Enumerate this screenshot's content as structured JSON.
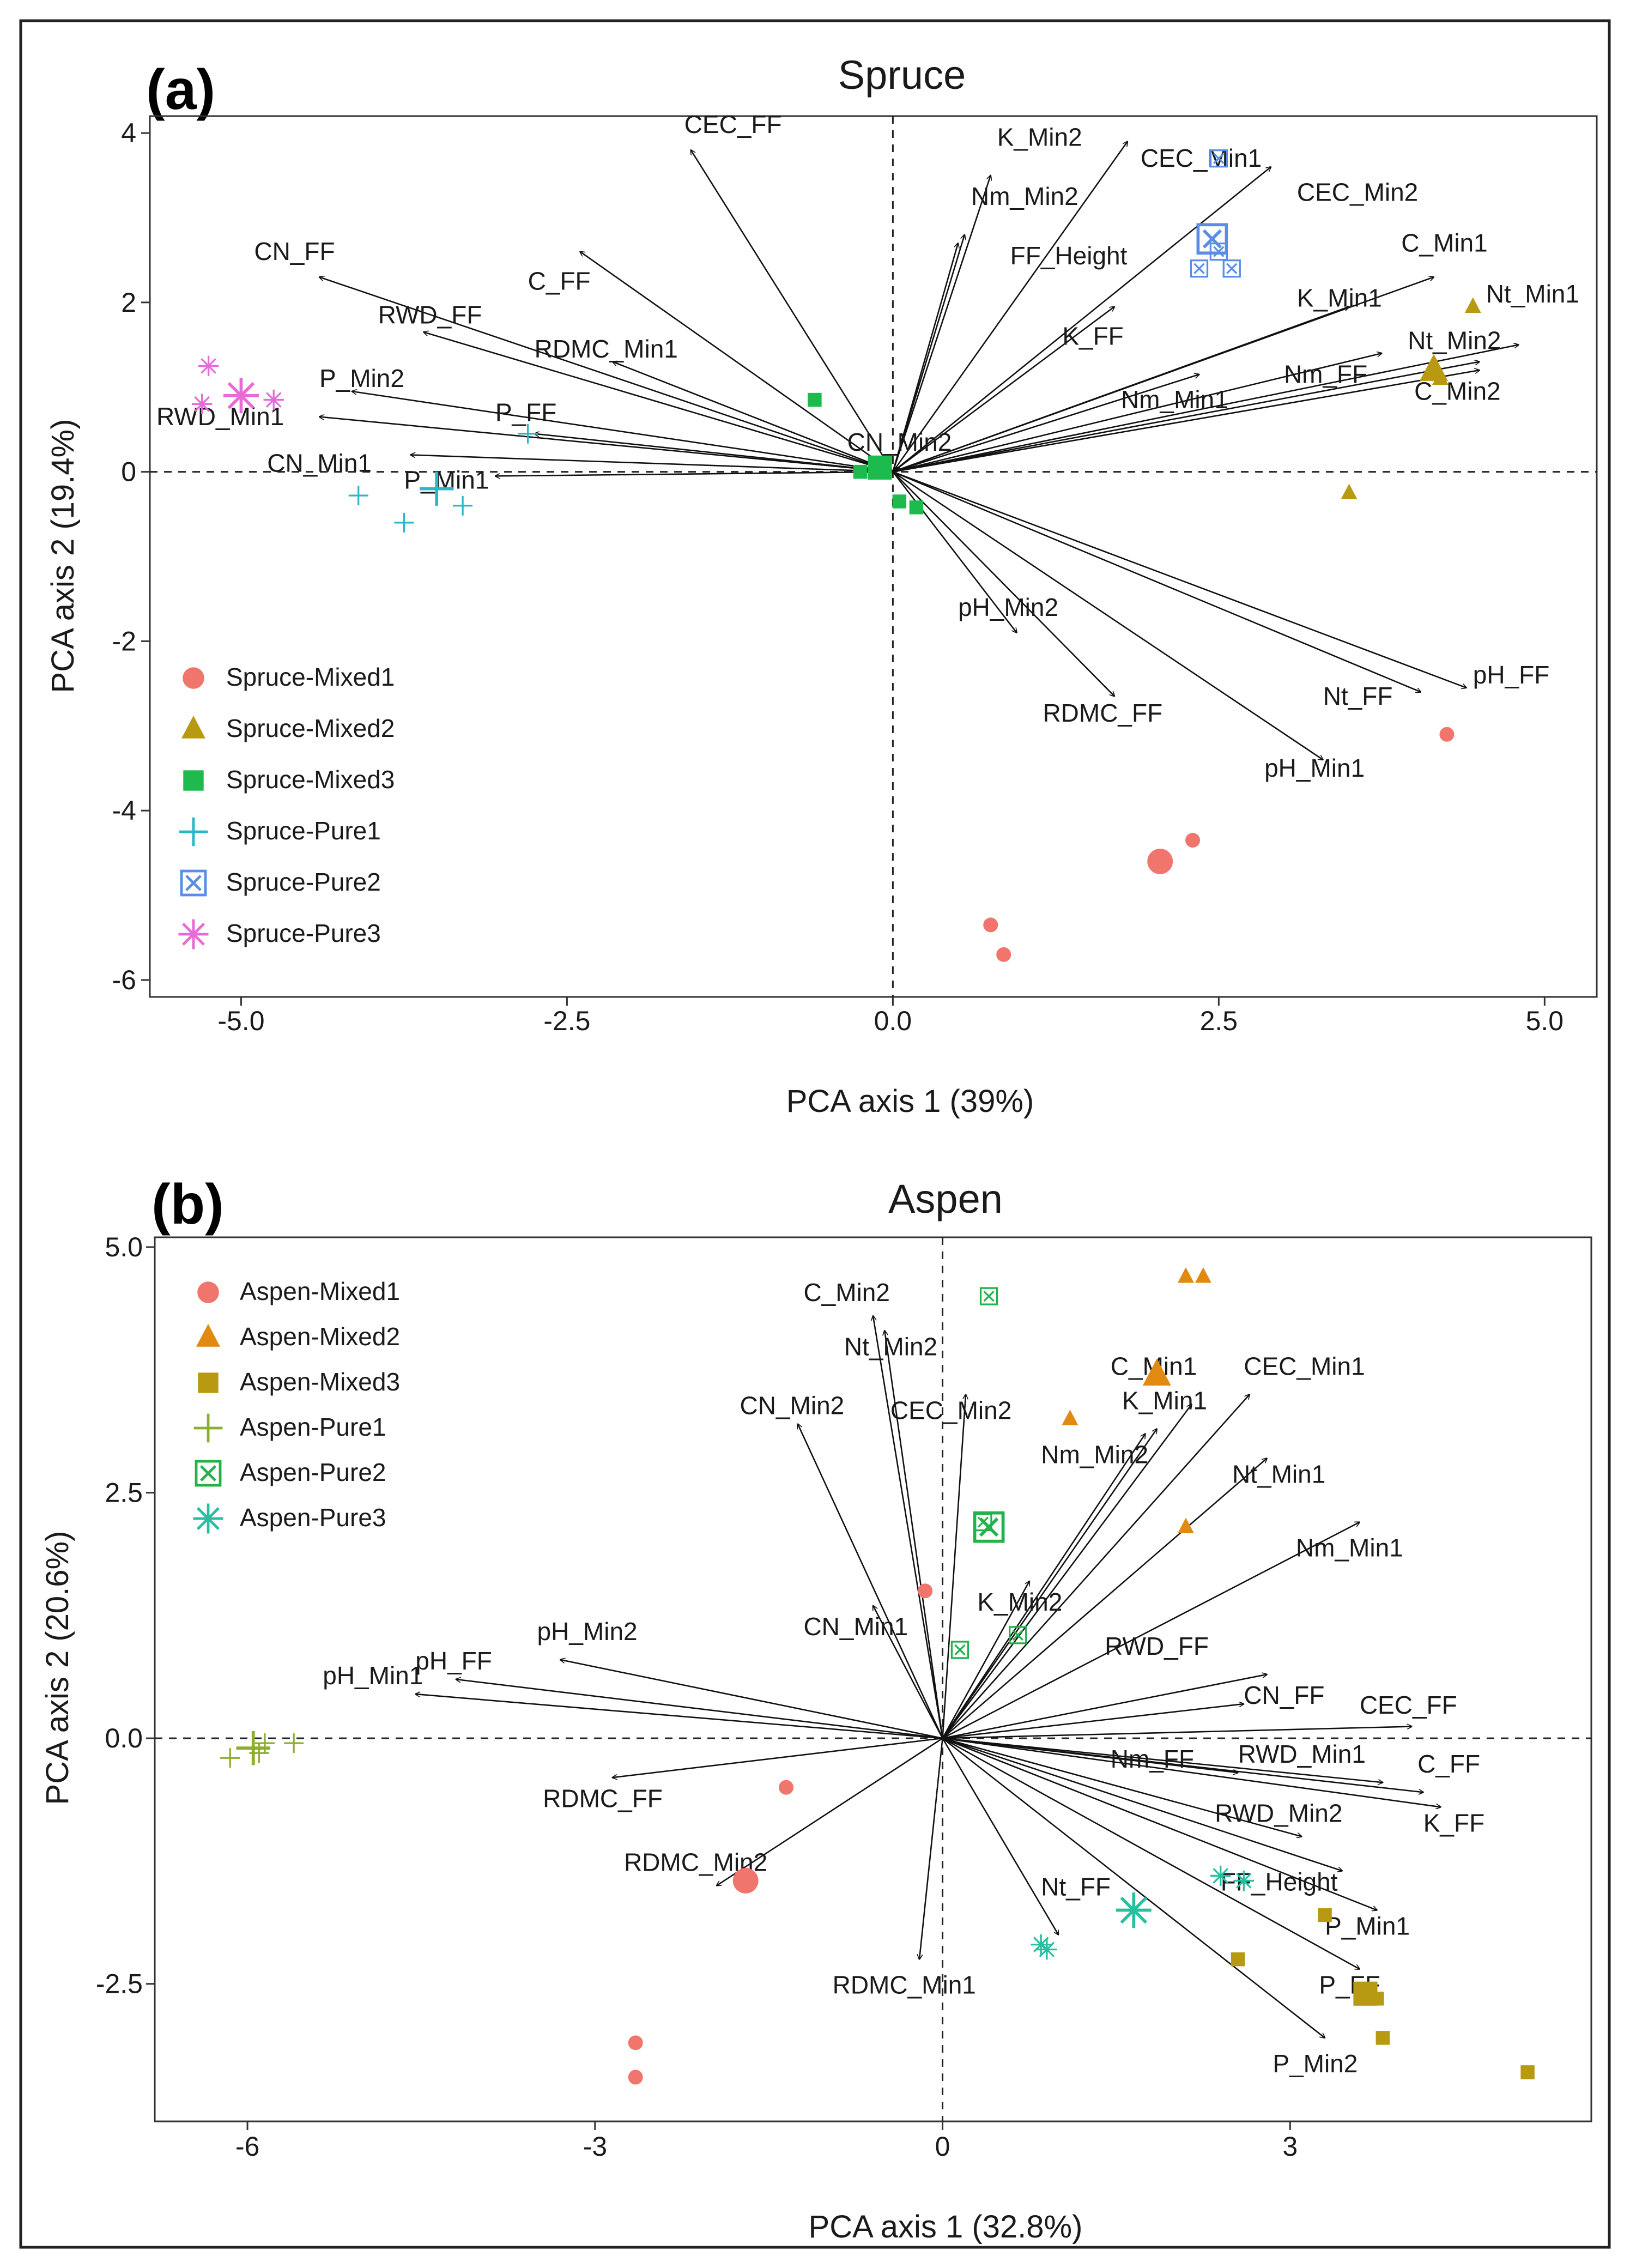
{
  "chart_data": [
    {
      "type": "scatter",
      "panel": "(a)",
      "title": "Spruce",
      "xlabel": "PCA axis 1 (39%)",
      "ylabel": "PCA axis 2 (19.4%)",
      "xlim": [
        -5.7,
        5.4
      ],
      "ylim": [
        -6.2,
        4.2
      ],
      "xticks": [
        -5.0,
        -2.5,
        0.0,
        2.5,
        5.0
      ],
      "xtick_labels": [
        "-5.0",
        "-2.5",
        "0.0",
        "2.5",
        "5.0"
      ],
      "yticks": [
        -6,
        -4,
        -2,
        0,
        2,
        4
      ],
      "ytick_labels": [
        "-6",
        "-4",
        "-2",
        "0",
        "2",
        "4"
      ],
      "legend_position": "bottom-left",
      "vectors": [
        {
          "label": "CEC_FF",
          "x": -1.55,
          "y": 3.8
        },
        {
          "label": "K_Min2",
          "x": 0.75,
          "y": 3.5
        },
        {
          "label": "CEC_Min1",
          "x": 1.8,
          "y": 3.9
        },
        {
          "label": "Nm_Min2",
          "x": 0.55,
          "y": 2.8
        },
        {
          "label": "FF_Height",
          "x": 0.5,
          "y": 2.7
        },
        {
          "label": "CEC_Min2",
          "x": 2.9,
          "y": 3.6
        },
        {
          "label": "C_Min1",
          "x": 4.15,
          "y": 2.3
        },
        {
          "label": "Nt_Min1",
          "x": 4.8,
          "y": 1.5
        },
        {
          "label": "K_Min1",
          "x": 3.5,
          "y": 1.95
        },
        {
          "label": "Nt_Min2",
          "x": 4.5,
          "y": 1.3
        },
        {
          "label": "Nm_FF",
          "x": 3.75,
          "y": 1.4
        },
        {
          "label": "C_Min2",
          "x": 4.5,
          "y": 1.2
        },
        {
          "label": "Nm_Min1",
          "x": 2.35,
          "y": 1.15
        },
        {
          "label": "K_FF",
          "x": 1.7,
          "y": 1.95
        },
        {
          "label": "CN_FF",
          "x": -4.4,
          "y": 2.3
        },
        {
          "label": "C_FF",
          "x": -2.4,
          "y": 2.6
        },
        {
          "label": "RWD_FF",
          "x": -3.6,
          "y": 1.65
        },
        {
          "label": "RDMC_Min1",
          "x": -2.15,
          "y": 1.3
        },
        {
          "label": "P_Min2",
          "x": -4.15,
          "y": 0.95
        },
        {
          "label": "RWD_Min1",
          "x": -4.4,
          "y": 0.65
        },
        {
          "label": "P_FF",
          "x": -2.75,
          "y": 0.45
        },
        {
          "label": "CN_Min1",
          "x": -3.7,
          "y": 0.2
        },
        {
          "label": "P_Min1",
          "x": -3.05,
          "y": -0.05
        },
        {
          "label": "CN_Min2",
          "x": 0.05,
          "y": 0.05
        },
        {
          "label": "pH_Min2",
          "x": 0.95,
          "y": -1.9
        },
        {
          "label": "RDMC_FF",
          "x": 1.7,
          "y": -2.65
        },
        {
          "label": "Nt_FF",
          "x": 4.05,
          "y": -2.6
        },
        {
          "label": "pH_FF",
          "x": 4.4,
          "y": -2.55
        },
        {
          "label": "pH_Min1",
          "x": 3.3,
          "y": -3.4
        }
      ],
      "vector_label_positions": [
        {
          "label": "CEC_FF",
          "x": -1.6,
          "y": 4.0
        },
        {
          "label": "K_Min2",
          "x": 0.8,
          "y": 3.85
        },
        {
          "label": "CEC_Min1",
          "x": 1.9,
          "y": 3.6
        },
        {
          "label": "Nm_Min2",
          "x": 0.6,
          "y": 3.15
        },
        {
          "label": "FF_Height",
          "x": 0.9,
          "y": 2.45
        },
        {
          "label": "CEC_Min2",
          "x": 3.1,
          "y": 3.2
        },
        {
          "label": "C_Min1",
          "x": 3.9,
          "y": 2.6
        },
        {
          "label": "Nt_Min1",
          "x": 4.55,
          "y": 2.0
        },
        {
          "label": "K_Min1",
          "x": 3.1,
          "y": 1.95
        },
        {
          "label": "Nt_Min2",
          "x": 3.95,
          "y": 1.45
        },
        {
          "label": "Nm_FF",
          "x": 3.0,
          "y": 1.05
        },
        {
          "label": "C_Min2",
          "x": 4.0,
          "y": 0.85
        },
        {
          "label": "Nm_Min1",
          "x": 1.75,
          "y": 0.75
        },
        {
          "label": "K_FF",
          "x": 1.3,
          "y": 1.5
        },
        {
          "label": "CN_FF",
          "x": -4.9,
          "y": 2.5
        },
        {
          "label": "C_FF",
          "x": -2.8,
          "y": 2.15
        },
        {
          "label": "RWD_FF",
          "x": -3.95,
          "y": 1.75
        },
        {
          "label": "RDMC_Min1",
          "x": -2.75,
          "y": 1.35
        },
        {
          "label": "P_Min2",
          "x": -4.4,
          "y": 1.0
        },
        {
          "label": "RWD_Min1",
          "x": -5.65,
          "y": 0.55
        },
        {
          "label": "P_FF",
          "x": -3.05,
          "y": 0.6
        },
        {
          "label": "CN_Min1",
          "x": -4.8,
          "y": 0.0
        },
        {
          "label": "P_Min1",
          "x": -3.75,
          "y": -0.2
        },
        {
          "label": "CN_Min2",
          "x": -0.35,
          "y": 0.25
        },
        {
          "label": "pH_Min2",
          "x": 0.5,
          "y": -1.7
        },
        {
          "label": "RDMC_FF",
          "x": 1.15,
          "y": -2.95
        },
        {
          "label": "Nt_FF",
          "x": 3.3,
          "y": -2.75
        },
        {
          "label": "pH_FF",
          "x": 4.45,
          "y": -2.5
        },
        {
          "label": "pH_Min1",
          "x": 2.85,
          "y": -3.6
        }
      ],
      "series": [
        {
          "name": "Spruce-Mixed1",
          "marker": "circle",
          "color": "#F0756C",
          "points": [
            {
              "x": 4.25,
              "y": -3.1
            },
            {
              "x": 2.3,
              "y": -4.35
            },
            {
              "x": 2.05,
              "y": -4.6,
              "size": "large"
            },
            {
              "x": 0.75,
              "y": -5.35
            },
            {
              "x": 0.85,
              "y": -5.7
            }
          ]
        },
        {
          "name": "Spruce-Mixed2",
          "marker": "triangle",
          "color": "#B89A12",
          "points": [
            {
              "x": 4.45,
              "y": 1.95
            },
            {
              "x": 4.15,
              "y": 1.2,
              "size": "large"
            },
            {
              "x": 4.2,
              "y": 1.1
            },
            {
              "x": 3.5,
              "y": -0.25
            }
          ]
        },
        {
          "name": "Spruce-Mixed3",
          "marker": "square",
          "color": "#1DBA4E",
          "points": [
            {
              "x": -0.6,
              "y": 0.85
            },
            {
              "x": -0.1,
              "y": 0.05,
              "size": "large"
            },
            {
              "x": -0.25,
              "y": 0.0
            },
            {
              "x": 0.05,
              "y": -0.35
            },
            {
              "x": 0.18,
              "y": -0.42
            }
          ]
        },
        {
          "name": "Spruce-Pure1",
          "marker": "plus",
          "color": "#2AB7C8",
          "points": [
            {
              "x": -2.8,
              "y": 0.45
            },
            {
              "x": -3.5,
              "y": -0.2,
              "size": "large"
            },
            {
              "x": -4.1,
              "y": -0.28
            },
            {
              "x": -3.75,
              "y": -0.6
            },
            {
              "x": -3.3,
              "y": -0.4
            }
          ]
        },
        {
          "name": "Spruce-Pure2",
          "marker": "boxx",
          "color": "#5A8EE6",
          "points": [
            {
              "x": 2.5,
              "y": 3.7
            },
            {
              "x": 2.45,
              "y": 2.75,
              "size": "large"
            },
            {
              "x": 2.5,
              "y": 2.6
            },
            {
              "x": 2.35,
              "y": 2.4
            },
            {
              "x": 2.6,
              "y": 2.4
            }
          ]
        },
        {
          "name": "Spruce-Pure3",
          "marker": "asterisk",
          "color": "#E86AD8",
          "points": [
            {
              "x": -5.25,
              "y": 1.25
            },
            {
              "x": -5.0,
              "y": 0.9,
              "size": "large"
            },
            {
              "x": -4.75,
              "y": 0.85
            },
            {
              "x": -5.3,
              "y": 0.8
            }
          ]
        }
      ]
    },
    {
      "type": "scatter",
      "panel": "(b)",
      "title": "Aspen",
      "xlabel": "PCA axis 1 (32.8%)",
      "ylabel": "PCA axis 2 (20.6%)",
      "xlim": [
        -6.8,
        5.6
      ],
      "ylim": [
        -3.9,
        5.1
      ],
      "xticks": [
        -6,
        -3,
        0,
        3
      ],
      "xtick_labels": [
        "-6",
        "-3",
        "0",
        "3"
      ],
      "yticks": [
        -2.5,
        0.0,
        2.5,
        5.0
      ],
      "ytick_labels": [
        "-2.5",
        "0.0",
        "2.5",
        "5.0"
      ],
      "legend_position": "top-left",
      "vectors": [
        {
          "label": "C_Min2",
          "x": -0.6,
          "y": 4.3
        },
        {
          "label": "Nt_Min2",
          "x": -0.5,
          "y": 4.15
        },
        {
          "label": "CN_Min2",
          "x": -1.25,
          "y": 3.2
        },
        {
          "label": "CEC_Min2",
          "x": 0.2,
          "y": 3.5
        },
        {
          "label": "C_Min1",
          "x": 2.15,
          "y": 3.4
        },
        {
          "label": "CEC_Min1",
          "x": 2.65,
          "y": 3.5
        },
        {
          "label": "K_Min1",
          "x": 1.85,
          "y": 3.15
        },
        {
          "label": "Nm_Min2",
          "x": 1.75,
          "y": 3.1
        },
        {
          "label": "Nt_Min1",
          "x": 2.8,
          "y": 2.85
        },
        {
          "label": "Nm_Min1",
          "x": 3.6,
          "y": 2.2
        },
        {
          "label": "K_Min2",
          "x": 0.75,
          "y": 1.6
        },
        {
          "label": "CN_Min1",
          "x": -0.6,
          "y": 1.35
        },
        {
          "label": "RWD_FF",
          "x": 2.8,
          "y": 0.65
        },
        {
          "label": "CN_FF",
          "x": 2.6,
          "y": 0.35
        },
        {
          "label": "CEC_FF",
          "x": 4.05,
          "y": 0.12
        },
        {
          "label": "Nm_FF",
          "x": 2.55,
          "y": -0.35
        },
        {
          "label": "RWD_Min1",
          "x": 3.8,
          "y": -0.45
        },
        {
          "label": "C_FF",
          "x": 4.15,
          "y": -0.55
        },
        {
          "label": "K_FF",
          "x": 4.3,
          "y": -0.7
        },
        {
          "label": "RWD_Min2",
          "x": 3.1,
          "y": -1.0
        },
        {
          "label": "FF_Height",
          "x": 3.45,
          "y": -1.35
        },
        {
          "label": "P_Min1",
          "x": 3.75,
          "y": -1.75
        },
        {
          "label": "P_FF",
          "x": 3.6,
          "y": -2.35
        },
        {
          "label": "P_Min2",
          "x": 3.3,
          "y": -3.05
        },
        {
          "label": "Nt_FF",
          "x": 1.0,
          "y": -2.0
        },
        {
          "label": "RDMC_Min1",
          "x": -0.2,
          "y": -2.25
        },
        {
          "label": "RDMC_Min2",
          "x": -1.95,
          "y": -1.5
        },
        {
          "label": "RDMC_FF",
          "x": -2.85,
          "y": -0.4
        },
        {
          "label": "pH_Min2",
          "x": -3.3,
          "y": 0.8
        },
        {
          "label": "pH_FF",
          "x": -4.2,
          "y": 0.6
        },
        {
          "label": "pH_Min1",
          "x": -4.55,
          "y": 0.45
        }
      ],
      "vector_label_positions": [
        {
          "label": "C_Min2",
          "x": -1.2,
          "y": 4.45
        },
        {
          "label": "Nt_Min2",
          "x": -0.85,
          "y": 3.9
        },
        {
          "label": "CN_Min2",
          "x": -1.75,
          "y": 3.3
        },
        {
          "label": "CEC_Min2",
          "x": -0.45,
          "y": 3.25
        },
        {
          "label": "C_Min1",
          "x": 1.45,
          "y": 3.7
        },
        {
          "label": "CEC_Min1",
          "x": 2.6,
          "y": 3.7
        },
        {
          "label": "K_Min1",
          "x": 1.55,
          "y": 3.35
        },
        {
          "label": "Nm_Min2",
          "x": 0.85,
          "y": 2.8
        },
        {
          "label": "Nt_Min1",
          "x": 2.5,
          "y": 2.6
        },
        {
          "label": "Nm_Min1",
          "x": 3.05,
          "y": 1.85
        },
        {
          "label": "K_Min2",
          "x": 0.3,
          "y": 1.3
        },
        {
          "label": "CN_Min1",
          "x": -1.2,
          "y": 1.05
        },
        {
          "label": "RWD_FF",
          "x": 1.4,
          "y": 0.85
        },
        {
          "label": "CN_FF",
          "x": 2.6,
          "y": 0.35
        },
        {
          "label": "CEC_FF",
          "x": 3.6,
          "y": 0.25
        },
        {
          "label": "Nm_FF",
          "x": 1.45,
          "y": -0.3
        },
        {
          "label": "RWD_Min1",
          "x": 2.55,
          "y": -0.25
        },
        {
          "label": "C_FF",
          "x": 4.1,
          "y": -0.35
        },
        {
          "label": "K_FF",
          "x": 4.15,
          "y": -0.95
        },
        {
          "label": "RWD_Min2",
          "x": 2.35,
          "y": -0.85
        },
        {
          "label": "FF_Height",
          "x": 2.4,
          "y": -1.55
        },
        {
          "label": "P_Min1",
          "x": 3.3,
          "y": -2.0
        },
        {
          "label": "P_FF",
          "x": 3.25,
          "y": -2.6
        },
        {
          "label": "P_Min2",
          "x": 2.85,
          "y": -3.4
        },
        {
          "label": "Nt_FF",
          "x": 0.85,
          "y": -1.6
        },
        {
          "label": "RDMC_Min1",
          "x": -0.95,
          "y": -2.6
        },
        {
          "label": "RDMC_Min2",
          "x": -2.75,
          "y": -1.35
        },
        {
          "label": "RDMC_FF",
          "x": -3.45,
          "y": -0.7
        },
        {
          "label": "pH_Min2",
          "x": -3.5,
          "y": 1.0
        },
        {
          "label": "pH_FF",
          "x": -4.55,
          "y": 0.7
        },
        {
          "label": "pH_Min1",
          "x": -5.35,
          "y": 0.55
        }
      ],
      "series": [
        {
          "name": "Aspen-Mixed1",
          "marker": "circle",
          "color": "#F0756C",
          "points": [
            {
              "x": -0.15,
              "y": 1.5
            },
            {
              "x": -1.35,
              "y": -0.5
            },
            {
              "x": -1.7,
              "y": -1.45,
              "size": "large"
            },
            {
              "x": -2.65,
              "y": -3.1
            },
            {
              "x": -2.65,
              "y": -3.45
            }
          ]
        },
        {
          "name": "Aspen-Mixed2",
          "marker": "triangle",
          "color": "#E08A12",
          "points": [
            {
              "x": 2.1,
              "y": 4.7
            },
            {
              "x": 2.25,
              "y": 4.7
            },
            {
              "x": 1.85,
              "y": 3.7,
              "size": "large"
            },
            {
              "x": 1.1,
              "y": 3.25
            },
            {
              "x": 2.1,
              "y": 2.15
            }
          ]
        },
        {
          "name": "Aspen-Mixed3",
          "marker": "square",
          "color": "#B89A12",
          "points": [
            {
              "x": 3.3,
              "y": -1.8
            },
            {
              "x": 2.55,
              "y": -2.25
            },
            {
              "x": 3.65,
              "y": -2.6,
              "size": "large"
            },
            {
              "x": 3.75,
              "y": -2.65
            },
            {
              "x": 3.8,
              "y": -3.05
            },
            {
              "x": 5.05,
              "y": -3.4
            }
          ]
        },
        {
          "name": "Aspen-Pure1",
          "marker": "plus",
          "color": "#8BAE2C",
          "points": [
            {
              "x": -5.95,
              "y": -0.1,
              "size": "large"
            },
            {
              "x": -5.85,
              "y": -0.05
            },
            {
              "x": -5.6,
              "y": -0.05
            },
            {
              "x": -6.15,
              "y": -0.2
            },
            {
              "x": -5.9,
              "y": -0.15
            }
          ]
        },
        {
          "name": "Aspen-Pure2",
          "marker": "boxx",
          "color": "#21B24A",
          "points": [
            {
              "x": 0.4,
              "y": 4.5
            },
            {
              "x": 0.35,
              "y": 2.2
            },
            {
              "x": 0.4,
              "y": 2.15,
              "size": "large"
            },
            {
              "x": 0.65,
              "y": 1.05
            },
            {
              "x": 0.15,
              "y": 0.9
            }
          ]
        },
        {
          "name": "Aspen-Pure3",
          "marker": "asterisk",
          "color": "#27BFA0",
          "points": [
            {
              "x": 2.4,
              "y": -1.4
            },
            {
              "x": 2.6,
              "y": -1.45
            },
            {
              "x": 1.65,
              "y": -1.75,
              "size": "large"
            },
            {
              "x": 0.85,
              "y": -2.1
            },
            {
              "x": 0.9,
              "y": -2.15
            }
          ]
        }
      ]
    }
  ]
}
